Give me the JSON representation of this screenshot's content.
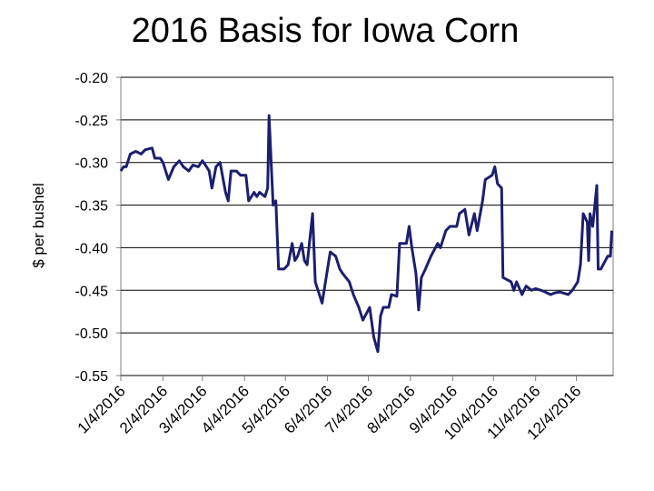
{
  "chart_data": {
    "type": "line",
    "title": "2016 Basis for Iowa Corn",
    "y_label": "$ per bushel",
    "x": [
      "1/4/2016",
      "1/6/2016",
      "1/8/2016",
      "1/11/2016",
      "1/15/2016",
      "1/19/2016",
      "1/22/2016",
      "1/27/2016",
      "1/29/2016",
      "2/2/2016",
      "2/4/2016",
      "2/8/2016",
      "2/12/2016",
      "2/16/2016",
      "2/19/2016",
      "2/23/2016",
      "2/26/2016",
      "3/1/2016",
      "3/4/2016",
      "3/7/2016",
      "3/9/2016",
      "3/11/2016",
      "3/14/2016",
      "3/17/2016",
      "3/21/2016",
      "3/23/2016",
      "3/25/2016",
      "3/29/2016",
      "4/1/2016",
      "4/5/2016",
      "4/7/2016",
      "4/11/2016",
      "4/13/2016",
      "4/15/2016",
      "4/19/2016",
      "4/21/2016",
      "4/22/2016",
      "4/25/2016",
      "4/27/2016",
      "4/29/2016",
      "5/3/2016",
      "5/6/2016",
      "5/9/2016",
      "5/11/2016",
      "5/13/2016",
      "5/16/2016",
      "5/18/2016",
      "5/20/2016",
      "5/24/2016",
      "5/26/2016",
      "5/31/2016",
      "6/2/2016",
      "6/6/2016",
      "6/10/2016",
      "6/13/2016",
      "6/15/2016",
      "6/20/2016",
      "6/23/2016",
      "6/27/2016",
      "6/30/2016",
      "7/5/2016",
      "7/8/2016",
      "7/11/2016",
      "7/13/2016",
      "7/15/2016",
      "7/19/2016",
      "7/21/2016",
      "7/25/2016",
      "7/27/2016",
      "8/1/2016",
      "8/3/2016",
      "8/5/2016",
      "8/8/2016",
      "8/10/2016",
      "8/12/2016",
      "8/15/2016",
      "8/19/2016",
      "8/24/2016",
      "8/26/2016",
      "8/30/2016",
      "9/2/2016",
      "9/7/2016",
      "9/9/2016",
      "9/13/2016",
      "9/16/2016",
      "9/20/2016",
      "9/22/2016",
      "9/26/2016",
      "9/28/2016",
      "10/3/2016",
      "10/5/2016",
      "10/7/2016",
      "10/10/2016",
      "10/11/2016",
      "10/17/2016",
      "10/19/2016",
      "10/21/2016",
      "10/25/2016",
      "10/28/2016",
      "11/1/2016",
      "11/4/2016",
      "11/8/2016",
      "11/11/2016",
      "11/15/2016",
      "11/18/2016",
      "11/22/2016",
      "11/28/2016",
      "12/1/2016",
      "12/5/2016",
      "12/7/2016",
      "12/9/2016",
      "12/12/2016",
      "12/13/2016",
      "12/14/2016",
      "12/16/2016",
      "12/19/2016",
      "12/20/2016",
      "12/22/2016",
      "12/27/2016",
      "12/29/2016",
      "12/30/2016"
    ],
    "series": [
      {
        "name": "Basis",
        "color": "#1b1f6e",
        "values": [
          -0.31,
          -0.305,
          -0.305,
          -0.29,
          -0.287,
          -0.29,
          -0.285,
          -0.283,
          -0.295,
          -0.295,
          -0.3,
          -0.32,
          -0.305,
          -0.298,
          -0.305,
          -0.31,
          -0.303,
          -0.305,
          -0.298,
          -0.305,
          -0.31,
          -0.33,
          -0.305,
          -0.3,
          -0.335,
          -0.345,
          -0.31,
          -0.31,
          -0.315,
          -0.315,
          -0.345,
          -0.335,
          -0.34,
          -0.335,
          -0.34,
          -0.33,
          -0.245,
          -0.35,
          -0.345,
          -0.425,
          -0.425,
          -0.42,
          -0.395,
          -0.415,
          -0.41,
          -0.395,
          -0.415,
          -0.42,
          -0.36,
          -0.44,
          -0.465,
          -0.445,
          -0.405,
          -0.41,
          -0.425,
          -0.43,
          -0.44,
          -0.455,
          -0.47,
          -0.485,
          -0.47,
          -0.505,
          -0.522,
          -0.48,
          -0.47,
          -0.47,
          -0.455,
          -0.457,
          -0.395,
          -0.395,
          -0.375,
          -0.4,
          -0.43,
          -0.473,
          -0.435,
          -0.425,
          -0.41,
          -0.395,
          -0.4,
          -0.38,
          -0.375,
          -0.375,
          -0.36,
          -0.355,
          -0.385,
          -0.36,
          -0.38,
          -0.345,
          -0.32,
          -0.315,
          -0.305,
          -0.325,
          -0.33,
          -0.435,
          -0.44,
          -0.45,
          -0.44,
          -0.455,
          -0.445,
          -0.45,
          -0.448,
          -0.45,
          -0.452,
          -0.455,
          -0.453,
          -0.452,
          -0.455,
          -0.45,
          -0.44,
          -0.42,
          -0.36,
          -0.37,
          -0.415,
          -0.36,
          -0.375,
          -0.327,
          -0.425,
          -0.425,
          -0.41,
          -0.41,
          -0.38
        ]
      }
    ],
    "xlim": [
      "1/4/2016",
      "12/31/2016"
    ],
    "xticks": [
      "1/4/2016",
      "2/4/2016",
      "3/4/2016",
      "4/4/2016",
      "5/4/2016",
      "6/4/2016",
      "7/4/2016",
      "8/4/2016",
      "9/4/2016",
      "10/4/2016",
      "11/4/2016",
      "12/4/2016"
    ],
    "ylim": [
      -0.55,
      -0.2
    ],
    "yticks": [
      {
        "value": -0.2,
        "label": "-0.20"
      },
      -0.25,
      {
        "value": -0.3,
        "label": "-0.30"
      },
      -0.35,
      {
        "value": -0.4,
        "label": "-0.40"
      },
      -0.45,
      {
        "value": -0.5,
        "label": "-0.50"
      },
      -0.55
    ],
    "grid": true
  }
}
